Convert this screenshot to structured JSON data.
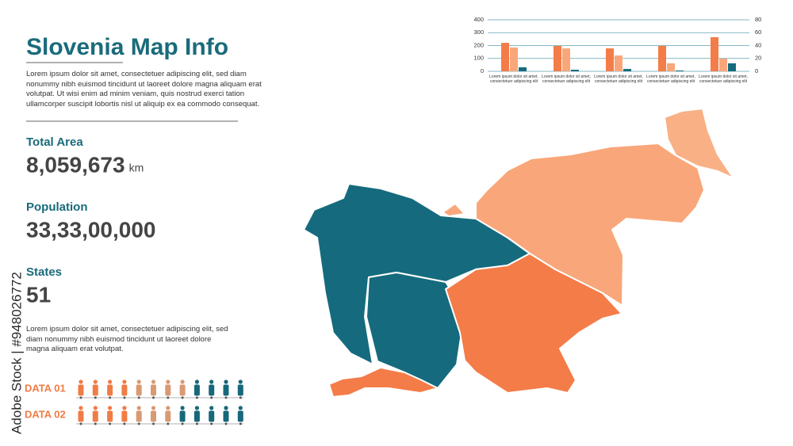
{
  "title": "Slovenia Map Info",
  "intro": "Lorem ipsum dolor sit amet, consectetuer adipiscing elit, sed diam nonummy nibh euismod tincidunt ut laoreet dolore magna aliquam erat volutpat. Ut wisi enim ad minim veniam, quis nostrud exerci tation ullamcorper suscipit lobortis nisl ut aliquip ex ea commodo consequat.",
  "stats": [
    {
      "label": "Total Area",
      "value": "8,059,673",
      "unit": "km"
    },
    {
      "label": "Population",
      "value": "33,33,00,000"
    },
    {
      "label": "States",
      "value": "51"
    }
  ],
  "note": "Lorem ipsum dolor sit amet, consectetuer adipiscing elit, sed diam nonummy nibh euismod tincidunt ut laoreet dolore magna aliquam erat volutpat.",
  "people_rows": [
    {
      "label": "DATA 01",
      "counts": [
        4,
        4,
        4
      ],
      "colors": [
        "#f07c45",
        "#d99a72",
        "#17687a"
      ]
    },
    {
      "label": "DATA 02",
      "counts": [
        4,
        3,
        5
      ],
      "colors": [
        "#f07c45",
        "#d99a72",
        "#17687a"
      ]
    }
  ],
  "watermark": "Adobe Stock | #948026772",
  "chart_data": {
    "type": "bar",
    "categories": [
      "Lorem ipsum dolor sit amet, consectetuer adipiscing elit",
      "Lorem ipsum dolor sit amet, consectetuer adipiscing elit",
      "Lorem ipsum dolor sit amet, consectetuer adipiscing elit",
      "Lorem ipsum dolor sit amet, consectetuer adipiscing elit",
      "Lorem ipsum dolor sit amet, consectetuer adipiscing elit"
    ],
    "series": [
      {
        "color": "#f47c48",
        "values": [
          221,
          197,
          178,
          197,
          265
        ]
      },
      {
        "color": "#f9a77a",
        "values": [
          185,
          178,
          123,
          62,
          98
        ]
      },
      {
        "color": "#156b7d",
        "values": [
          31,
          12,
          18,
          6,
          62
        ]
      }
    ],
    "ylim": [
      0,
      400
    ],
    "yticks": [
      0,
      100,
      200,
      300,
      400
    ],
    "y2lim": [
      0,
      80
    ],
    "y2ticks": [
      0,
      20,
      40,
      60,
      80
    ],
    "grid": true
  }
}
